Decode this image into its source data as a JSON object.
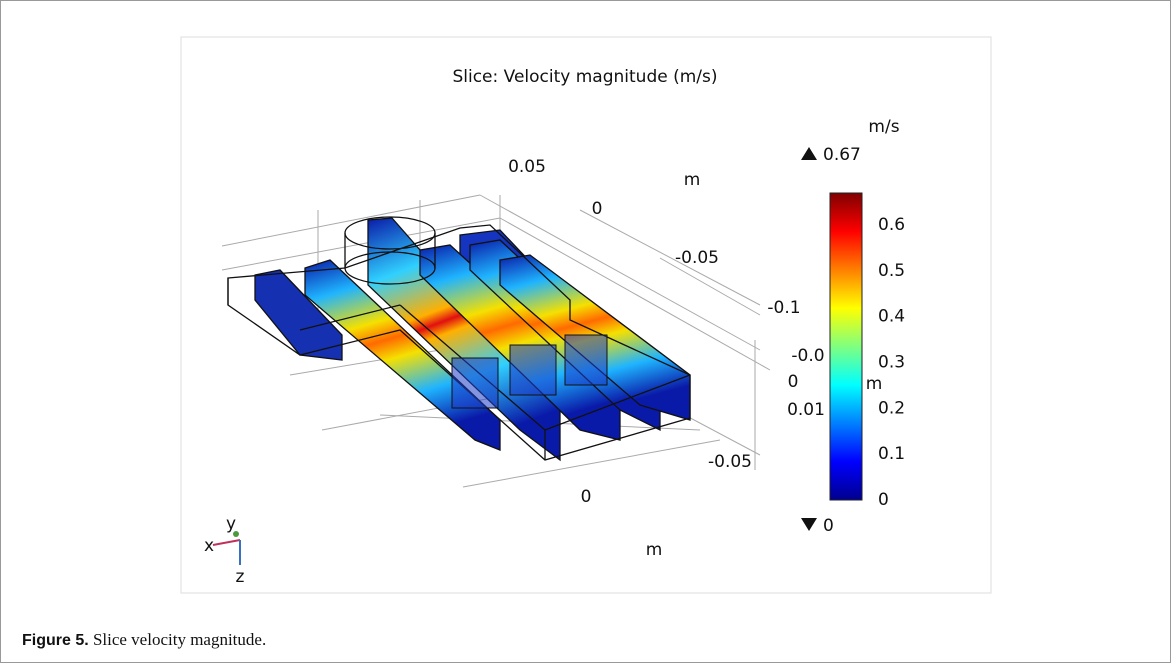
{
  "figure": {
    "title": "Slice: Velocity magnitude (m/s)",
    "colorbar": {
      "unit": "m/s",
      "max": 0.67,
      "min": 0,
      "ticks": [
        0,
        0.1,
        0.2,
        0.3,
        0.4,
        0.5,
        0.6
      ]
    },
    "y_axis": {
      "ticks": [
        "0.05",
        "0",
        "-0.05",
        "-0.1"
      ],
      "unit": "m"
    },
    "z_axis": {
      "ticks": [
        "-0.0",
        "0",
        "0.01"
      ],
      "unit": "m"
    },
    "x_axis": {
      "ticks": [
        "-0.05",
        "0"
      ],
      "unit": "m"
    },
    "triad": {
      "x": "x",
      "y": "y",
      "z": "z"
    }
  },
  "caption": {
    "label": "Figure 5.",
    "text": " Slice velocity magnitude."
  }
}
